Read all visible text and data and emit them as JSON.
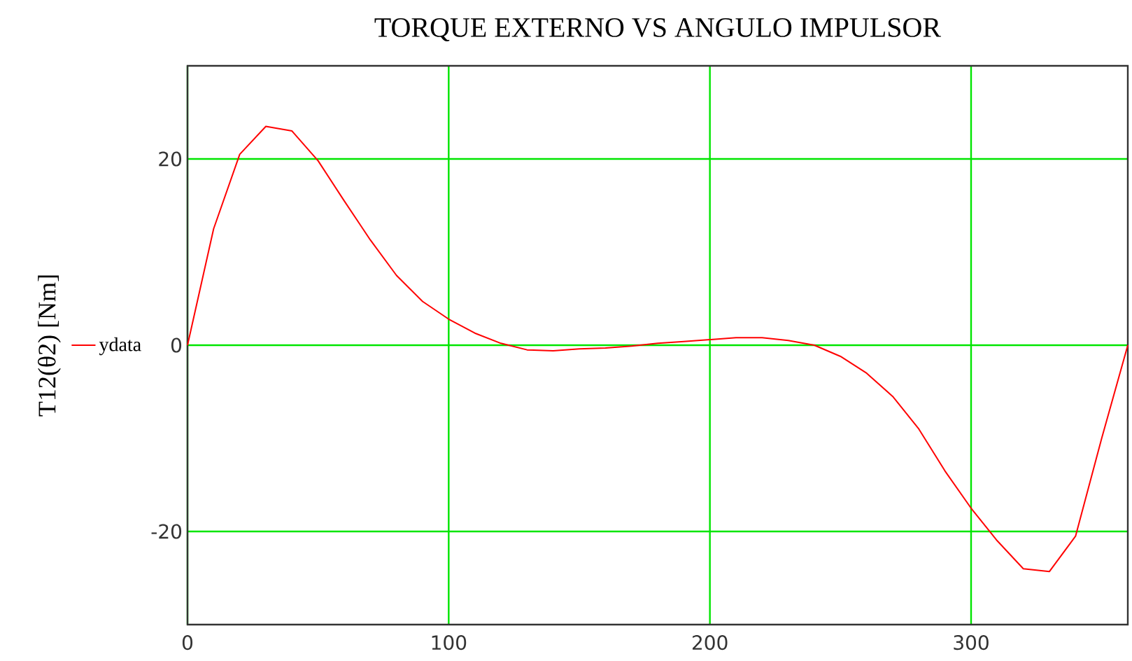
{
  "chart_data": {
    "type": "line",
    "title": "TORQUE EXTERNO VS ANGULO IMPULSOR",
    "ylabel": "T12(θ2) [Nm]",
    "x": [
      0,
      10,
      20,
      30,
      40,
      50,
      60,
      70,
      80,
      90,
      100,
      110,
      120,
      130,
      140,
      150,
      160,
      170,
      180,
      190,
      200,
      210,
      220,
      230,
      240,
      250,
      260,
      270,
      280,
      290,
      300,
      310,
      320,
      330,
      340,
      350,
      360
    ],
    "series": [
      {
        "name": "ydata",
        "color": "#ff0000",
        "values": [
          0,
          12.5,
          20.5,
          23.5,
          23,
          19.8,
          15.5,
          11.3,
          7.5,
          4.7,
          2.8,
          1.3,
          0.2,
          -0.5,
          -0.6,
          -0.4,
          -0.3,
          -0.1,
          0.2,
          0.4,
          0.6,
          0.8,
          0.8,
          0.5,
          0,
          -1.2,
          -3,
          -5.5,
          -9,
          -13.5,
          -17.5,
          -21,
          -24,
          -24.3,
          -20.5,
          -10,
          0
        ]
      }
    ],
    "xlim": [
      0,
      360
    ],
    "ylim": [
      -30,
      30
    ],
    "xticks": [
      0,
      100,
      200,
      300
    ],
    "yticks": [
      -20,
      0,
      20
    ],
    "grid": true,
    "legend": "left",
    "marker": "none",
    "line_style": "solid"
  }
}
